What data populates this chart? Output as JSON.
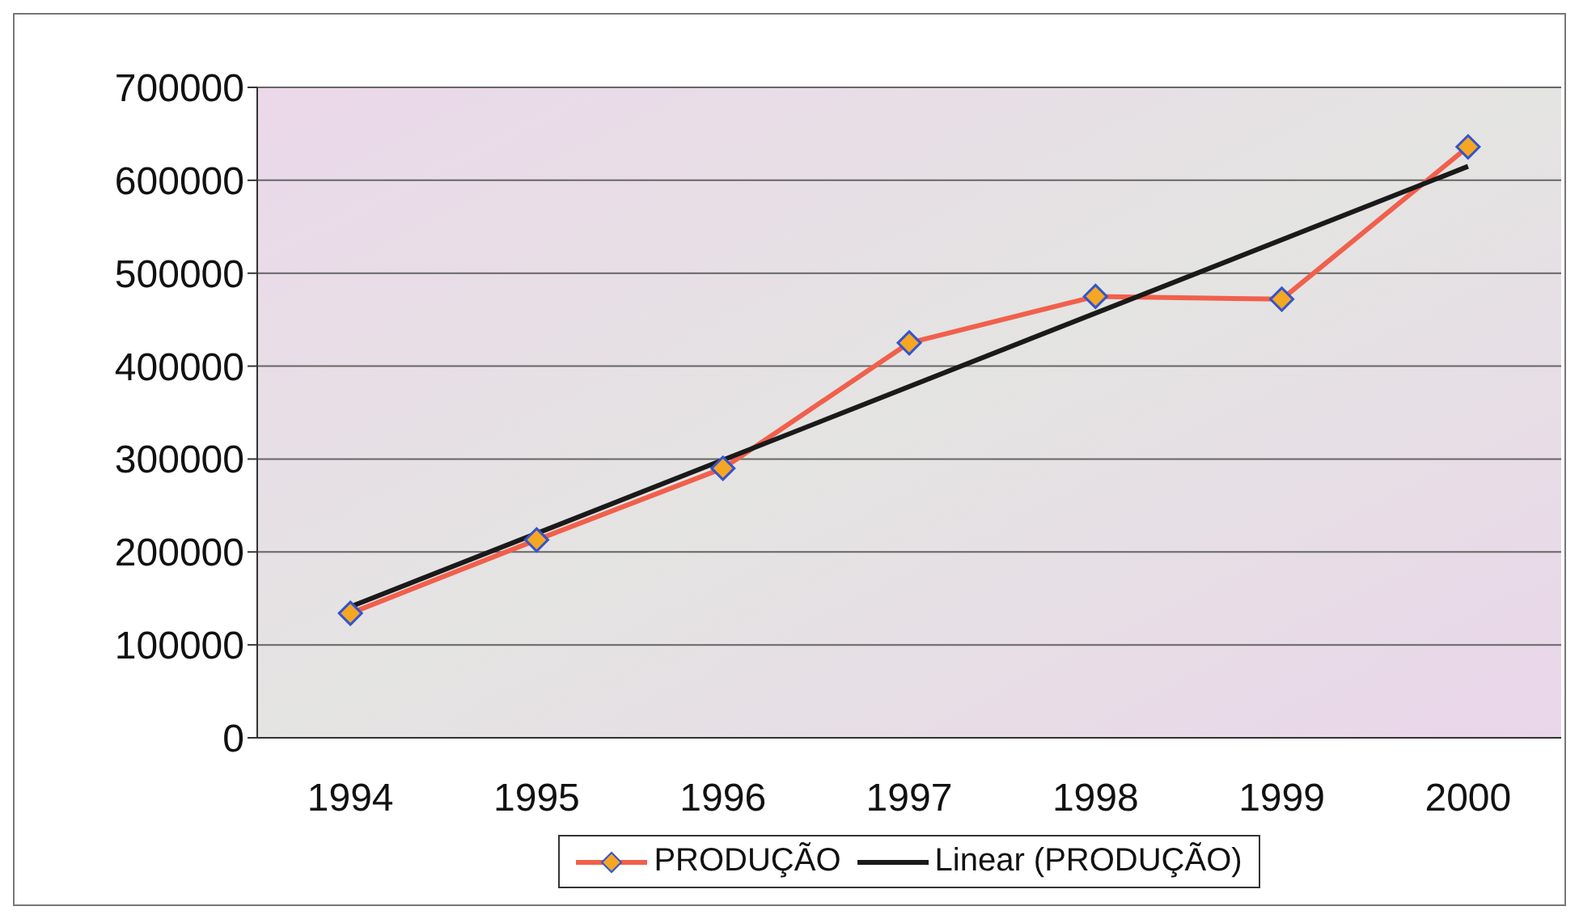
{
  "chart_data": {
    "type": "line",
    "categories": [
      "1994",
      "1995",
      "1996",
      "1997",
      "1998",
      "1999",
      "2000"
    ],
    "series": [
      {
        "name": "PRODUÇÃO",
        "color": "#f0604c",
        "values": [
          134000,
          213000,
          290000,
          425000,
          475000,
          472000,
          636000
        ],
        "marker": "diamond"
      },
      {
        "name": "Linear (PRODUÇÃO)",
        "color": "#1a1a1a",
        "type": "line",
        "values": [
          141000,
          null,
          null,
          null,
          null,
          null,
          615000
        ],
        "marker": "none"
      }
    ],
    "ylim": [
      0,
      700000
    ],
    "yticks": [
      0,
      100000,
      200000,
      300000,
      400000,
      500000,
      600000,
      700000
    ],
    "grid": "y",
    "legend": "bottom"
  }
}
